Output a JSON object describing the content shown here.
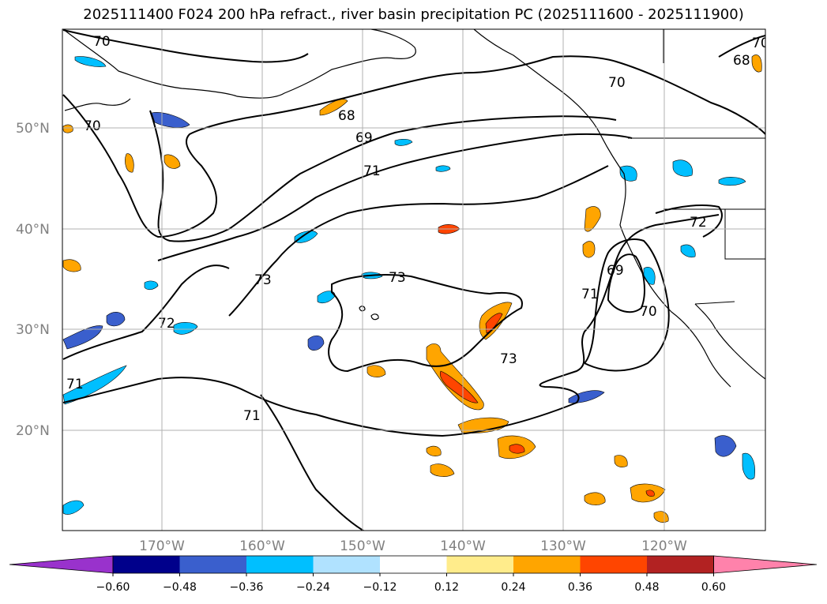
{
  "title": "2025111400 F024 200 hPa refract., river basin precipitation PC (2025111600 - 2025111900)",
  "map": {
    "lat_labels": [
      "50°N",
      "40°N",
      "30°N",
      "20°N"
    ],
    "lon_labels": [
      "170°W",
      "160°W",
      "150°W",
      "140°W",
      "130°W",
      "120°W"
    ],
    "contour_labels": [
      "70",
      "70",
      "68",
      "69",
      "71",
      "73",
      "72",
      "71",
      "71",
      "73",
      "70",
      "72",
      "69",
      "71",
      "70",
      "68",
      "73",
      "70"
    ]
  },
  "colorbar": {
    "tick_labels": [
      "−0.60",
      "−0.48",
      "−0.36",
      "−0.24",
      "−0.12",
      "0.12",
      "0.24",
      "0.36",
      "0.48",
      "0.60"
    ],
    "colors": [
      "#9932cc",
      "#00008b",
      "#3a5fcd",
      "#00bfff",
      "#b0e2ff",
      "#ffffff",
      "#ffec8b",
      "#ffa500",
      "#ff4500",
      "#b22222",
      "#ff82ab"
    ]
  }
}
